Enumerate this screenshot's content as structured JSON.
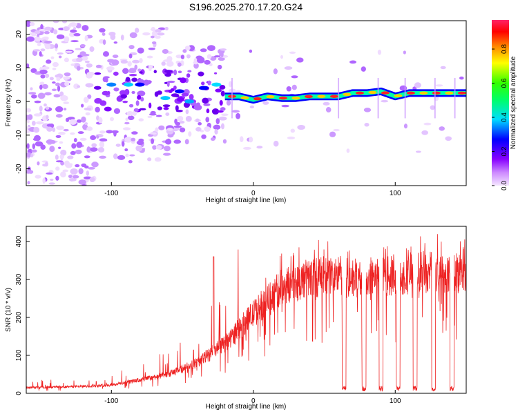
{
  "title": "S196.2025.270.17.20.G24",
  "chart_data": [
    {
      "type": "heatmap",
      "name": "spectrogram",
      "xlabel": "Height of straight line (km)",
      "ylabel": "Frequency (Hz)",
      "xlim": [
        -160,
        150
      ],
      "ylim": [
        -25,
        24
      ],
      "xticks": [
        -100,
        0,
        100
      ],
      "yticks": [
        -20,
        -10,
        0,
        10,
        20
      ],
      "colorbar": {
        "label": "Normalized spectral amplitude",
        "ticks": [
          0.0,
          0.2,
          0.4,
          0.6,
          0.8
        ],
        "range": [
          0,
          0.97
        ]
      },
      "ridge": {
        "x": [
          -20,
          -10,
          0,
          10,
          20,
          30,
          40,
          50,
          60,
          70,
          80,
          90,
          100,
          110,
          120,
          130,
          140,
          150
        ],
        "y": [
          1.5,
          1.5,
          0.5,
          1.5,
          1.0,
          1.0,
          1.5,
          1.5,
          1.5,
          2.5,
          2.5,
          3.0,
          1.5,
          2.5,
          2.5,
          2.5,
          2.5,
          2.5
        ]
      }
    },
    {
      "type": "line",
      "name": "snr",
      "xlabel": "Height of straight line (km)",
      "ylabel": "SNR (10 * v/v)",
      "xlim": [
        -160,
        150
      ],
      "ylim": [
        0,
        440
      ],
      "xticks": [
        -100,
        0,
        100
      ],
      "yticks": [
        0,
        100,
        200,
        300,
        400
      ],
      "color": "#ee2222",
      "envelope_x": [
        -160,
        -120,
        -100,
        -80,
        -60,
        -40,
        -20,
        0,
        20,
        40,
        60,
        80,
        100,
        120,
        150
      ],
      "envelope_y": [
        15,
        18,
        22,
        35,
        50,
        80,
        130,
        210,
        280,
        305,
        310,
        300,
        310,
        320,
        320
      ],
      "dropouts": [
        64,
        78,
        90,
        102,
        114,
        127,
        140
      ]
    }
  ]
}
